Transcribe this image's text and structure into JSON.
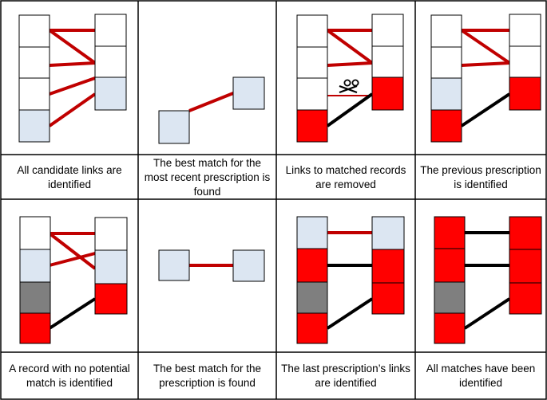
{
  "colors": {
    "white": "#ffffff",
    "light_blue": "#dce6f2",
    "red": "#ff0000",
    "gray": "#7f7f7f",
    "link_red": "#c00000",
    "link_black": "#000000",
    "border": "#000000"
  },
  "panels": [
    {
      "caption": "All candidate links are identified"
    },
    {
      "caption": "The best match for the most recent prescription is found"
    },
    {
      "caption": "Links to matched records are removed"
    },
    {
      "caption": "The previous prescription is identified"
    },
    {
      "caption": "A record with no potential match is identified"
    },
    {
      "caption": "The best match for the prescription is found"
    },
    {
      "caption": "The last prescription’s links are identified"
    },
    {
      "caption": "All matches have been identified"
    }
  ],
  "icons": {
    "scissors": "scissors-icon"
  }
}
